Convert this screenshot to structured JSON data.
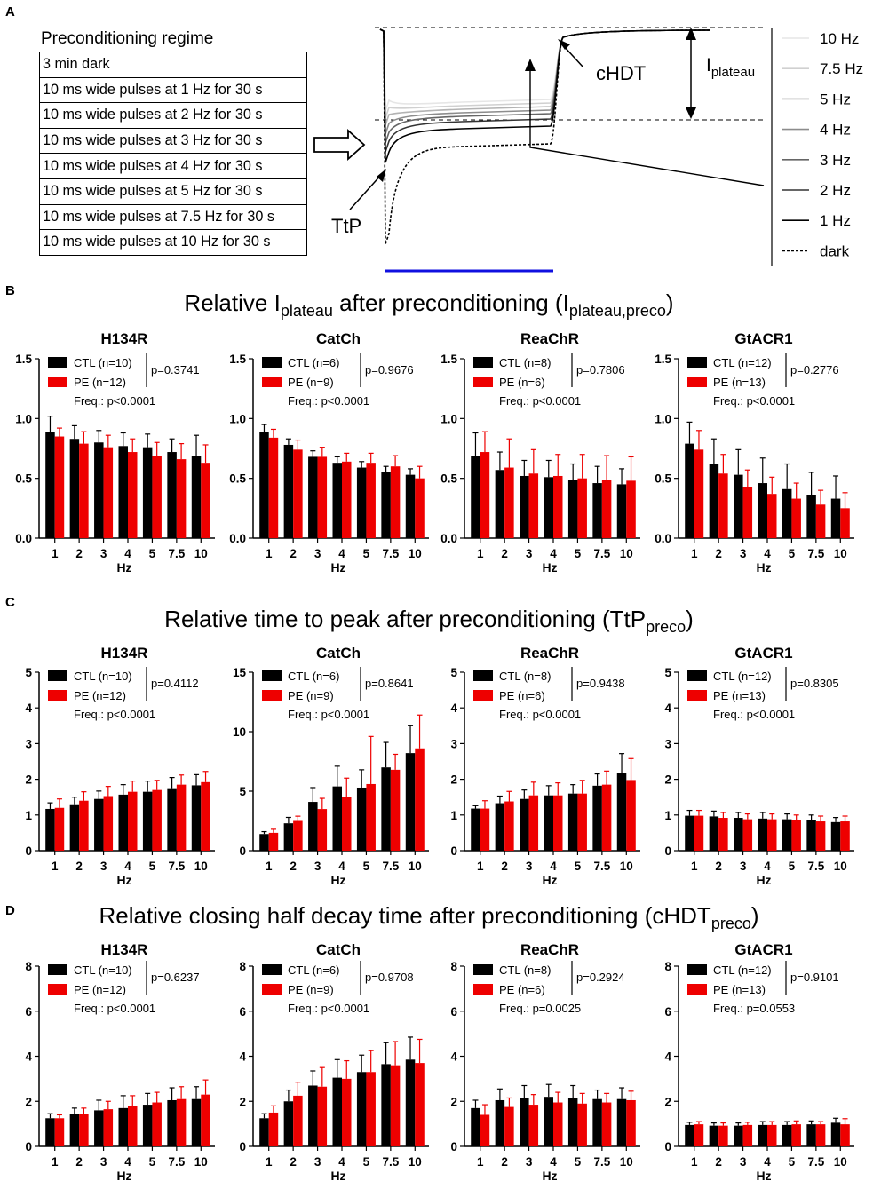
{
  "panel_labels": {
    "a": "A",
    "b": "B",
    "c": "C",
    "d": "D"
  },
  "panel_a": {
    "regime_title": "Preconditioning regime",
    "regime_rows": [
      "3 min dark",
      "10 ms wide pulses at 1 Hz for 30 s",
      "10 ms wide pulses at 2 Hz for 30 s",
      "10 ms wide pulses at 3 Hz for 30 s",
      "10 ms wide pulses at 4 Hz for 30 s",
      "10 ms wide pulses at 5 Hz for 30 s",
      "10 ms wide pulses at 7.5 Hz for 30 s",
      "10 ms wide pulses at 10 Hz for 30 s"
    ],
    "annotations": {
      "ttp": "TtP",
      "chdt": "cHDT",
      "iplateau_main": "I",
      "iplateau_sub": "plateau"
    },
    "legend": [
      {
        "label": "10 Hz",
        "color": "#e6e6e6",
        "dashed": false
      },
      {
        "label": "7.5 Hz",
        "color": "#d0d0d0",
        "dashed": false
      },
      {
        "label": "5 Hz",
        "color": "#b3b3b3",
        "dashed": false
      },
      {
        "label": "4 Hz",
        "color": "#8c8c8c",
        "dashed": false
      },
      {
        "label": "3 Hz",
        "color": "#666666",
        "dashed": false
      },
      {
        "label": "2 Hz",
        "color": "#333333",
        "dashed": false
      },
      {
        "label": "1 Hz",
        "color": "#000000",
        "dashed": false
      },
      {
        "label": "dark",
        "color": "#000000",
        "dashed": true
      }
    ],
    "light_bar_color": "#1010e0"
  },
  "panel_titles": {
    "b": {
      "pre": "Relative I",
      "sub1": "plateau",
      "mid": " after preconditioning (I",
      "sub2": "plateau,preco",
      "post": ")"
    },
    "c": {
      "pre": "Relative time to peak after preconditioning (TtP",
      "sub2": "preco",
      "post": ")"
    },
    "d": {
      "pre": "Relative closing half decay time after preconditioning (cHDT",
      "sub2": "preco",
      "post": ")"
    }
  },
  "colors": {
    "ctl": "#000000",
    "pe": "#ee0000"
  },
  "chart_data": [
    {
      "type": "bar",
      "row": "B",
      "title": "H134R",
      "categories": [
        "1",
        "2",
        "3",
        "4",
        "5",
        "7.5",
        "10"
      ],
      "xlabel": "Hz",
      "ylim": [
        0,
        1.5
      ],
      "yticks": [
        "0.0",
        "0.5",
        "1.0",
        "1.5"
      ],
      "series": [
        {
          "name": "CTL (n=10)",
          "values": [
            0.89,
            0.83,
            0.8,
            0.77,
            0.76,
            0.72,
            0.69
          ],
          "errors": [
            0.13,
            0.11,
            0.1,
            0.11,
            0.11,
            0.11,
            0.17
          ]
        },
        {
          "name": "PE (n=12)",
          "values": [
            0.85,
            0.79,
            0.76,
            0.72,
            0.69,
            0.66,
            0.63
          ],
          "errors": [
            0.07,
            0.1,
            0.1,
            0.11,
            0.11,
            0.13,
            0.15
          ]
        }
      ],
      "p_value": "p=0.3741",
      "freq": "Freq.: p<0.0001"
    },
    {
      "type": "bar",
      "row": "B",
      "title": "CatCh",
      "categories": [
        "1",
        "2",
        "3",
        "4",
        "5",
        "7.5",
        "10"
      ],
      "xlabel": "Hz",
      "ylim": [
        0,
        1.5
      ],
      "yticks": [
        "0.0",
        "0.5",
        "1.0",
        "1.5"
      ],
      "series": [
        {
          "name": "CTL (n=6)",
          "values": [
            0.89,
            0.78,
            0.68,
            0.63,
            0.59,
            0.55,
            0.53
          ],
          "errors": [
            0.06,
            0.05,
            0.05,
            0.05,
            0.05,
            0.05,
            0.05
          ]
        },
        {
          "name": "PE (n=9)",
          "values": [
            0.84,
            0.74,
            0.68,
            0.64,
            0.63,
            0.6,
            0.5
          ],
          "errors": [
            0.07,
            0.08,
            0.08,
            0.07,
            0.08,
            0.09,
            0.1
          ]
        }
      ],
      "p_value": "p=0.9676",
      "freq": "Freq.: p<0.0001"
    },
    {
      "type": "bar",
      "row": "B",
      "title": "ReaChR",
      "categories": [
        "1",
        "2",
        "3",
        "4",
        "5",
        "7.5",
        "10"
      ],
      "xlabel": "Hz",
      "ylim": [
        0,
        1.5
      ],
      "yticks": [
        "0.0",
        "0.5",
        "1.0",
        "1.5"
      ],
      "series": [
        {
          "name": "CTL (n=8)",
          "values": [
            0.69,
            0.57,
            0.52,
            0.51,
            0.49,
            0.46,
            0.45
          ],
          "errors": [
            0.19,
            0.15,
            0.13,
            0.14,
            0.13,
            0.14,
            0.13
          ]
        },
        {
          "name": "PE (n=6)",
          "values": [
            0.72,
            0.59,
            0.54,
            0.52,
            0.5,
            0.49,
            0.48
          ],
          "errors": [
            0.17,
            0.24,
            0.2,
            0.18,
            0.2,
            0.2,
            0.2
          ]
        }
      ],
      "p_value": "p=0.7806",
      "freq": "Freq.: p<0.0001"
    },
    {
      "type": "bar",
      "row": "B",
      "title": "GtACR1",
      "categories": [
        "1",
        "2",
        "3",
        "4",
        "5",
        "7.5",
        "10"
      ],
      "xlabel": "Hz",
      "ylim": [
        0,
        1.5
      ],
      "yticks": [
        "0.0",
        "0.5",
        "1.0",
        "1.5"
      ],
      "series": [
        {
          "name": "CTL (n=12)",
          "values": [
            0.79,
            0.62,
            0.53,
            0.46,
            0.41,
            0.36,
            0.33
          ],
          "errors": [
            0.18,
            0.21,
            0.21,
            0.21,
            0.21,
            0.19,
            0.19
          ]
        },
        {
          "name": "PE (n=13)",
          "values": [
            0.74,
            0.54,
            0.43,
            0.37,
            0.33,
            0.28,
            0.25
          ],
          "errors": [
            0.16,
            0.16,
            0.14,
            0.14,
            0.13,
            0.12,
            0.13
          ]
        }
      ],
      "p_value": "p=0.2776",
      "freq": "Freq.: p<0.0001"
    },
    {
      "type": "bar",
      "row": "C",
      "title": "H134R",
      "categories": [
        "1",
        "2",
        "3",
        "4",
        "5",
        "7.5",
        "10"
      ],
      "xlabel": "Hz",
      "ylim": [
        0,
        5
      ],
      "yticks": [
        "0",
        "1",
        "2",
        "3",
        "4",
        "5"
      ],
      "series": [
        {
          "name": "CTL (n=10)",
          "values": [
            1.17,
            1.3,
            1.45,
            1.57,
            1.65,
            1.75,
            1.83
          ],
          "errors": [
            0.17,
            0.2,
            0.22,
            0.28,
            0.3,
            0.3,
            0.3
          ]
        },
        {
          "name": "PE (n=12)",
          "values": [
            1.2,
            1.4,
            1.53,
            1.65,
            1.7,
            1.85,
            1.92
          ],
          "errors": [
            0.25,
            0.25,
            0.27,
            0.3,
            0.27,
            0.27,
            0.3
          ]
        }
      ],
      "p_value": "p=0.4112",
      "freq": "Freq.: p<0.0001"
    },
    {
      "type": "bar",
      "row": "C",
      "title": "CatCh",
      "categories": [
        "1",
        "2",
        "3",
        "4",
        "5",
        "7.5",
        "10"
      ],
      "xlabel": "Hz",
      "ylim": [
        0,
        15
      ],
      "yticks": [
        "0",
        "5",
        "10",
        "15"
      ],
      "series": [
        {
          "name": "CTL (n=6)",
          "values": [
            1.4,
            2.3,
            4.1,
            5.4,
            5.3,
            7.0,
            8.2
          ],
          "errors": [
            0.2,
            0.5,
            1.2,
            1.7,
            1.5,
            2.1,
            2.3
          ]
        },
        {
          "name": "PE (n=9)",
          "values": [
            1.5,
            2.5,
            3.5,
            4.5,
            5.6,
            6.8,
            8.6
          ],
          "errors": [
            0.3,
            0.4,
            0.9,
            1.6,
            4.0,
            1.3,
            2.8
          ]
        }
      ],
      "p_value": "p=0.8641",
      "freq": "Freq.: p<0.0001"
    },
    {
      "type": "bar",
      "row": "C",
      "title": "ReaChR",
      "categories": [
        "1",
        "2",
        "3",
        "4",
        "5",
        "7.5",
        "10"
      ],
      "xlabel": "Hz",
      "ylim": [
        0,
        5
      ],
      "yticks": [
        "0",
        "1",
        "2",
        "3",
        "4",
        "5"
      ],
      "series": [
        {
          "name": "CTL (n=8)",
          "values": [
            1.18,
            1.33,
            1.45,
            1.55,
            1.6,
            1.82,
            2.17
          ],
          "errors": [
            0.08,
            0.2,
            0.25,
            0.27,
            0.25,
            0.33,
            0.55
          ]
        },
        {
          "name": "PE (n=6)",
          "values": [
            1.18,
            1.38,
            1.55,
            1.55,
            1.6,
            1.85,
            1.98
          ],
          "errors": [
            0.22,
            0.28,
            0.37,
            0.35,
            0.37,
            0.38,
            0.6
          ]
        }
      ],
      "p_value": "p=0.9438",
      "freq": "Freq.: p<0.0001"
    },
    {
      "type": "bar",
      "row": "C",
      "title": "GtACR1",
      "categories": [
        "1",
        "2",
        "3",
        "4",
        "5",
        "7.5",
        "10"
      ],
      "xlabel": "Hz",
      "ylim": [
        0,
        5
      ],
      "yticks": [
        "0",
        "1",
        "2",
        "3",
        "4",
        "5"
      ],
      "series": [
        {
          "name": "CTL (n=12)",
          "values": [
            0.98,
            0.96,
            0.92,
            0.9,
            0.88,
            0.85,
            0.8
          ],
          "errors": [
            0.15,
            0.15,
            0.15,
            0.17,
            0.15,
            0.15,
            0.13
          ]
        },
        {
          "name": "PE (n=13)",
          "values": [
            0.98,
            0.92,
            0.88,
            0.88,
            0.85,
            0.82,
            0.82
          ],
          "errors": [
            0.15,
            0.15,
            0.15,
            0.15,
            0.15,
            0.15,
            0.15
          ]
        }
      ],
      "p_value": "p=0.8305",
      "freq": "Freq.: p<0.0001"
    },
    {
      "type": "bar",
      "row": "D",
      "title": "H134R",
      "categories": [
        "1",
        "2",
        "3",
        "4",
        "5",
        "7.5",
        "10"
      ],
      "xlabel": "Hz",
      "ylim": [
        0,
        8
      ],
      "yticks": [
        "0",
        "2",
        "4",
        "6",
        "8"
      ],
      "series": [
        {
          "name": "CTL (n=10)",
          "values": [
            1.25,
            1.45,
            1.6,
            1.7,
            1.85,
            2.05,
            2.1
          ],
          "errors": [
            0.2,
            0.25,
            0.45,
            0.55,
            0.5,
            0.55,
            0.55
          ]
        },
        {
          "name": "PE (n=12)",
          "values": [
            1.25,
            1.45,
            1.65,
            1.8,
            1.95,
            2.1,
            2.3
          ],
          "errors": [
            0.15,
            0.25,
            0.35,
            0.45,
            0.45,
            0.55,
            0.65
          ]
        }
      ],
      "p_value": "p=0.6237",
      "freq": "Freq.: p<0.0001"
    },
    {
      "type": "bar",
      "row": "D",
      "title": "CatCh",
      "categories": [
        "1",
        "2",
        "3",
        "4",
        "5",
        "7.5",
        "10"
      ],
      "xlabel": "Hz",
      "ylim": [
        0,
        8
      ],
      "yticks": [
        "0",
        "2",
        "4",
        "6",
        "8"
      ],
      "series": [
        {
          "name": "CTL (n=6)",
          "values": [
            1.25,
            2.0,
            2.7,
            3.05,
            3.3,
            3.65,
            3.85
          ],
          "errors": [
            0.2,
            0.5,
            0.65,
            0.8,
            0.75,
            0.95,
            1.0
          ]
        },
        {
          "name": "PE (n=9)",
          "values": [
            1.5,
            2.25,
            2.65,
            3.0,
            3.3,
            3.6,
            3.7
          ],
          "errors": [
            0.3,
            0.6,
            0.85,
            0.8,
            0.95,
            1.05,
            1.05
          ]
        }
      ],
      "p_value": "p=0.9708",
      "freq": "Freq.: p<0.0001"
    },
    {
      "type": "bar",
      "row": "D",
      "title": "ReaChR",
      "categories": [
        "1",
        "2",
        "3",
        "4",
        "5",
        "7.5",
        "10"
      ],
      "xlabel": "Hz",
      "ylim": [
        0,
        8
      ],
      "yticks": [
        "0",
        "2",
        "4",
        "6",
        "8"
      ],
      "series": [
        {
          "name": "CTL (n=8)",
          "values": [
            1.7,
            2.05,
            2.15,
            2.2,
            2.15,
            2.1,
            2.1
          ],
          "errors": [
            0.35,
            0.5,
            0.55,
            0.55,
            0.55,
            0.4,
            0.5
          ]
        },
        {
          "name": "PE (n=6)",
          "values": [
            1.4,
            1.75,
            1.85,
            1.95,
            1.9,
            1.95,
            2.05
          ],
          "errors": [
            0.45,
            0.4,
            0.45,
            0.45,
            0.45,
            0.4,
            0.4
          ]
        }
      ],
      "p_value": "p=0.2924",
      "freq": "Freq.: p=0.0025"
    },
    {
      "type": "bar",
      "row": "D",
      "title": "GtACR1",
      "categories": [
        "1",
        "2",
        "3",
        "4",
        "5",
        "7.5",
        "10"
      ],
      "xlabel": "Hz",
      "ylim": [
        0,
        8
      ],
      "yticks": [
        "0",
        "2",
        "4",
        "6",
        "8"
      ],
      "series": [
        {
          "name": "CTL (n=12)",
          "values": [
            0.95,
            0.92,
            0.92,
            0.95,
            0.95,
            0.98,
            1.05
          ],
          "errors": [
            0.12,
            0.12,
            0.12,
            0.15,
            0.15,
            0.15,
            0.2
          ]
        },
        {
          "name": "PE (n=13)",
          "values": [
            0.98,
            0.92,
            0.95,
            0.95,
            0.98,
            0.98,
            0.98
          ],
          "errors": [
            0.12,
            0.12,
            0.12,
            0.15,
            0.15,
            0.12,
            0.25
          ]
        }
      ],
      "p_value": "p=0.9101",
      "freq": "Freq.: p=0.0553"
    }
  ]
}
